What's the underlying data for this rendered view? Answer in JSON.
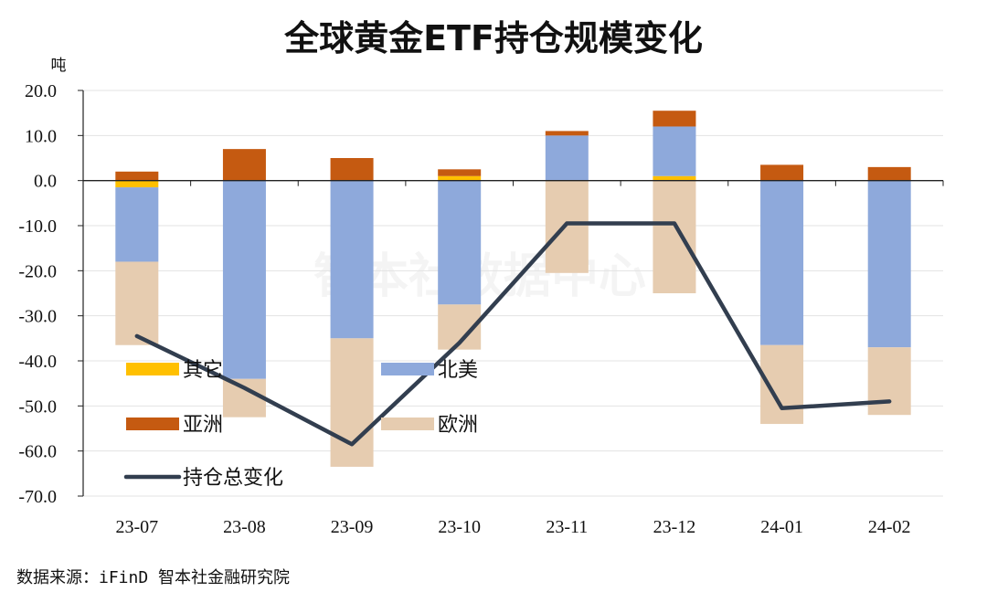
{
  "chart_data": {
    "type": "bar",
    "stacked": true,
    "title": "全球黄金ETF持仓规模变化",
    "ylabel": "吨",
    "ylim": [
      -70,
      20
    ],
    "yticks": [
      "20.0",
      "10.0",
      "0.0",
      "-10.0",
      "-20.0",
      "-30.0",
      "-40.0",
      "-50.0",
      "-60.0",
      "-70.0"
    ],
    "categories": [
      "23-07",
      "23-08",
      "23-09",
      "23-10",
      "23-11",
      "23-12",
      "24-01",
      "24-02"
    ],
    "series": [
      {
        "name": "其它",
        "type": "bar",
        "color": "#FFC000",
        "values": [
          -1.5,
          0.0,
          0.0,
          1.0,
          0.0,
          1.0,
          0.0,
          0.0
        ]
      },
      {
        "name": "北美",
        "type": "bar",
        "color": "#8EA9DB",
        "values": [
          -16.5,
          -44.0,
          -35.0,
          -27.5,
          10.0,
          11.0,
          -36.5,
          -37.0
        ]
      },
      {
        "name": "亚洲",
        "type": "bar",
        "color": "#C55A11",
        "values": [
          2.0,
          7.0,
          5.0,
          1.5,
          1.0,
          3.5,
          3.5,
          3.0
        ]
      },
      {
        "name": "欧洲",
        "type": "bar",
        "color": "#E6CCB0",
        "values": [
          -18.5,
          -8.5,
          -28.5,
          -10.0,
          -20.5,
          -25.0,
          -17.5,
          -15.0
        ]
      },
      {
        "name": "持仓总变化",
        "type": "line",
        "color": "#323E4F",
        "values": [
          -34.5,
          -46.0,
          -58.5,
          -36.0,
          -9.5,
          -9.5,
          -50.5,
          -49.0
        ]
      }
    ],
    "grid": "horizontal",
    "legend_position": "inside-lower-left",
    "source_text": "数据来源：iFinD 智本社金融研究院",
    "watermark_text": "智本社数据中心"
  }
}
